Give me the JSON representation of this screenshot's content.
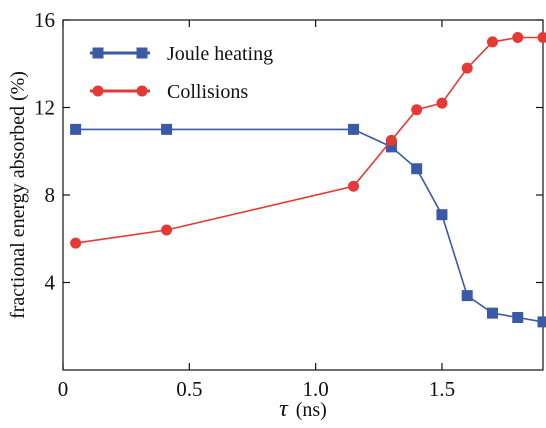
{
  "chart_data": {
    "type": "line",
    "title": "",
    "xlabel_symbol": "τ",
    "xlabel_unit": "(ns)",
    "ylabel": "fractional energy absorbed (%)",
    "xlim": [
      0.0,
      1.9
    ],
    "ylim": [
      0,
      16
    ],
    "xticks": [
      0,
      0.5,
      1.0,
      1.5
    ],
    "xtick_labels": [
      "0",
      "0.5",
      "1.0",
      "1.5"
    ],
    "yticks": [
      4,
      8,
      12,
      16
    ],
    "ytick_labels": [
      "4",
      "8",
      "12",
      "16"
    ],
    "grid": false,
    "legend_position": "top-left",
    "series": [
      {
        "name": "Joule heating",
        "color": "#3a5aa6",
        "marker": "square",
        "x": [
          0.05,
          0.41,
          1.15,
          1.3,
          1.4,
          1.5,
          1.6,
          1.7,
          1.8,
          1.9
        ],
        "y": [
          11.0,
          11.0,
          11.0,
          10.2,
          9.2,
          7.1,
          3.4,
          2.6,
          2.4,
          2.2
        ]
      },
      {
        "name": "Collisions",
        "color": "#e53935",
        "marker": "circle",
        "x": [
          0.05,
          0.41,
          1.15,
          1.3,
          1.4,
          1.5,
          1.6,
          1.7,
          1.8,
          1.9
        ],
        "y": [
          5.8,
          6.4,
          8.4,
          10.5,
          11.9,
          12.2,
          13.8,
          15.0,
          15.2,
          15.2
        ]
      }
    ]
  }
}
